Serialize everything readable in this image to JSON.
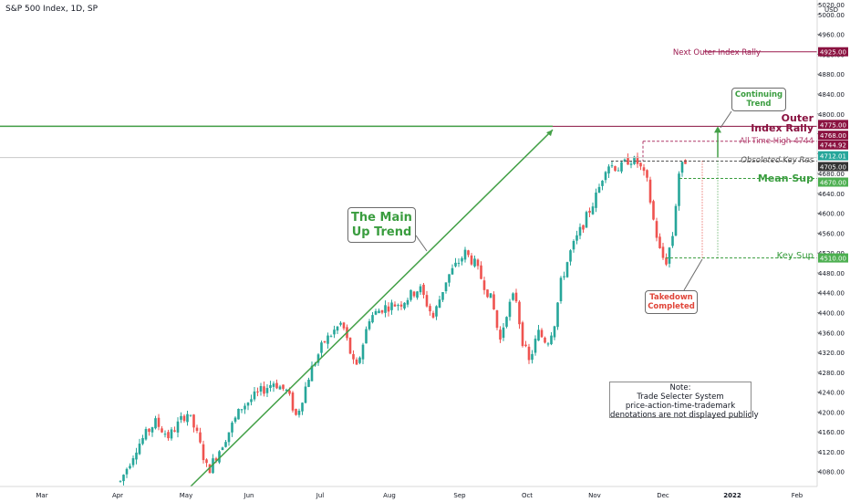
{
  "header": {
    "title": "S&P 500 Index, 1D, SP",
    "currency": "USD"
  },
  "chart_data": {
    "type": "candlestick",
    "title": "S&P 500 Index, 1D, SP",
    "ylim": [
      4050,
      5020
    ],
    "y_ticks": [
      4080,
      4120,
      4160,
      4200,
      4240,
      4280,
      4320,
      4360,
      4400,
      4440,
      4480,
      4520,
      4560,
      4600,
      4640,
      4680,
      4720,
      4760,
      4800,
      4840,
      4880,
      4920,
      4960,
      5000,
      5020
    ],
    "x_ticks": [
      "Mar",
      "Apr",
      "May",
      "Jun",
      "Jul",
      "Aug",
      "Sep",
      "Oct",
      "Nov",
      "Dec",
      "2022",
      "Feb"
    ],
    "grid": false,
    "key_levels": [
      {
        "label": "Next Outer Index Rally",
        "value": 4925.0,
        "color": "#9c1a4f"
      },
      {
        "label": "Outer Index Rally",
        "value": 4775.0,
        "color": "#8a1240"
      },
      {
        "label": "All Time High-4744",
        "value": 4744.92,
        "color": "#b03a6a"
      },
      {
        "label": "Obsoleted Key Res",
        "value": 4705.0,
        "color": "#555555"
      },
      {
        "label": "Mean Sup",
        "value": 4670.0,
        "color": "#3a9d3f"
      },
      {
        "label": "Key Sup",
        "value": 4510.0,
        "color": "#3a9d3f"
      }
    ],
    "price_tags": [
      {
        "text": "4925.00",
        "value": 4925,
        "color": "#8a1240"
      },
      {
        "text": "4775.00",
        "value": 4775,
        "color": "#8a1240"
      },
      {
        "text": "4768.00",
        "value": 4768,
        "color": "#8a1240"
      },
      {
        "text": "4744.92",
        "value": 4744.92,
        "color": "#8a1240"
      },
      {
        "text": "4712.01",
        "value": 4712.01,
        "color": "#26a69a"
      },
      {
        "text": "4705.00",
        "value": 4705,
        "color": "#333333"
      },
      {
        "text": "4670.00",
        "value": 4670,
        "color": "#4caf50"
      },
      {
        "text": "4510.00",
        "value": 4510,
        "color": "#4caf50"
      }
    ],
    "annotations": {
      "main_trend": [
        "The Main",
        "Up Trend"
      ],
      "continuing": [
        "Continuing",
        "Trend"
      ],
      "takedown": [
        "Takedown",
        "Completed"
      ],
      "outer_index": [
        "Outer",
        "Index Rally"
      ]
    },
    "note": {
      "lines": [
        "Note:",
        "Trade Selecter System",
        "price-action-time-trademark",
        "denotations are not displayed publicly"
      ]
    },
    "colors": {
      "up": "#26a69a",
      "down": "#ef5350",
      "trend": "#43a047"
    }
  }
}
